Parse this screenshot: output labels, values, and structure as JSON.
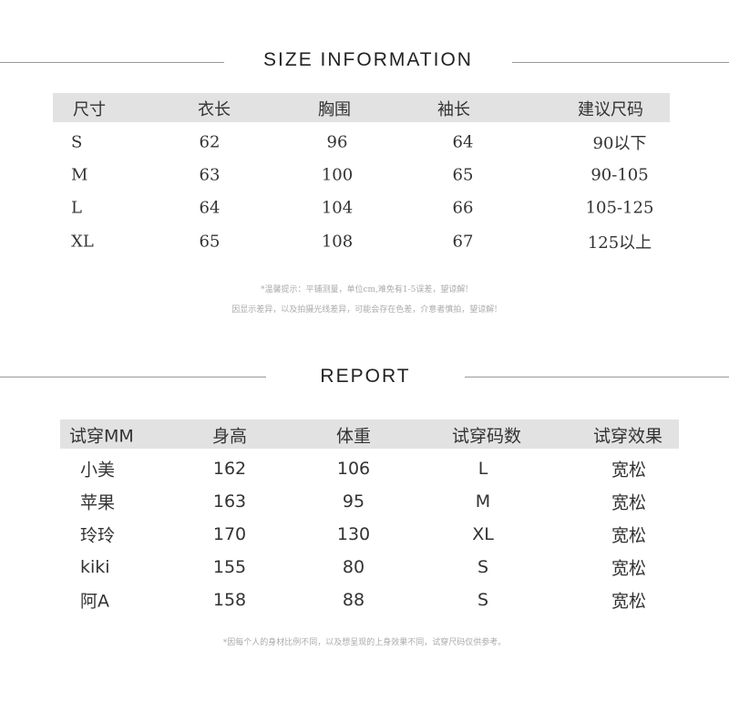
{
  "size_info": {
    "title": "SIZE INFORMATION",
    "headers": [
      "尺寸",
      "衣长",
      "胸围",
      "袖长",
      "建议尺码"
    ],
    "rows": [
      [
        "S",
        "62",
        "96",
        "64",
        "90以下"
      ],
      [
        "M",
        "63",
        "100",
        "65",
        "90-105"
      ],
      [
        "L",
        "64",
        "104",
        "66",
        "105-125"
      ],
      [
        "XL",
        "65",
        "108",
        "67",
        "125以上"
      ]
    ],
    "notes": [
      "*温馨提示：平铺测量，单位cm,难免有1-5误差，望谅解!",
      "因显示差异，以及拍摄光线差异，可能会存在色差，介意者慎拍，望谅解!"
    ]
  },
  "report": {
    "title": "REPORT",
    "headers": [
      "试穿MM",
      "身高",
      "体重",
      "试穿码数",
      "试穿效果"
    ],
    "rows": [
      [
        "小美",
        "162",
        "106",
        "L",
        "宽松"
      ],
      [
        "苹果",
        "163",
        "95",
        "M",
        "宽松"
      ],
      [
        "玲玲",
        "170",
        "130",
        "XL",
        "宽松"
      ],
      [
        "kiki",
        "155",
        "80",
        "S",
        "宽松"
      ],
      [
        "阿A",
        "158",
        "88",
        "S",
        "宽松"
      ]
    ],
    "note": "*因每个人的身材比例不同，以及想呈现的上身效果不同，试穿尺码仅供参考。"
  },
  "colors": {
    "header_bar": "#e2e2e2",
    "divider": "#999999"
  }
}
